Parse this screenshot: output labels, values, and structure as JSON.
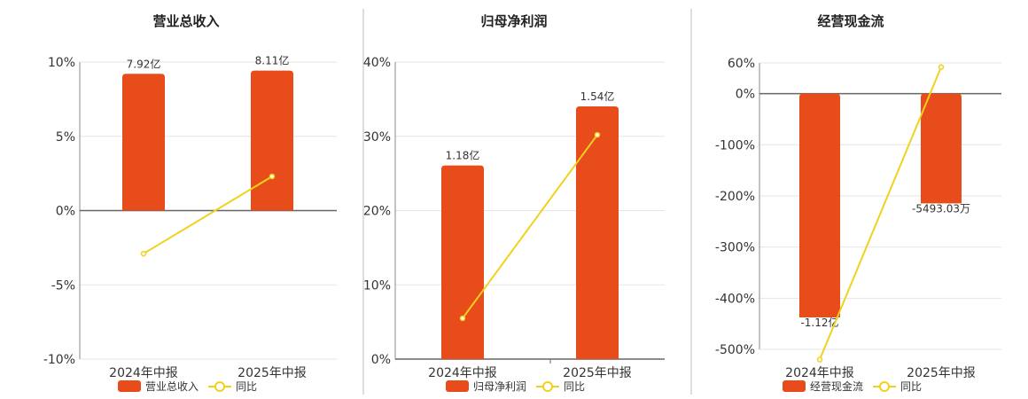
{
  "chart_data": [
    {
      "type": "bar",
      "title": "营业总收入",
      "categories": [
        "2024年中报",
        "2025年中报"
      ],
      "series": [
        {
          "name": "营业总收入",
          "type": "bar",
          "values": [
            7.92,
            8.11
          ],
          "labels": [
            "7.92亿",
            "8.11亿"
          ],
          "color": "#e84c1a"
        },
        {
          "name": "同比",
          "type": "line",
          "values": [
            -2.9,
            2.3
          ],
          "color": "#f0d21e"
        }
      ],
      "ylim": [
        -10,
        10
      ],
      "yticks": [
        "10%",
        "5%",
        "0%",
        "-5%",
        "-10%"
      ],
      "bar_scale": [
        0,
        8.5
      ],
      "grid": true,
      "legend": "bottom"
    },
    {
      "type": "bar",
      "title": "归母净利润",
      "categories": [
        "2024年中报",
        "2025年中报"
      ],
      "series": [
        {
          "name": "归母净利润",
          "type": "bar",
          "values": [
            1.18,
            1.54
          ],
          "labels": [
            "1.18亿",
            "1.54亿"
          ],
          "color": "#e84c1a"
        },
        {
          "name": "同比",
          "type": "line",
          "values": [
            5.5,
            30.2
          ],
          "color": "#f0d21e"
        }
      ],
      "ylim": [
        0,
        40
      ],
      "yticks": [
        "40%",
        "30%",
        "20%",
        "10%",
        "0%"
      ],
      "bar_scale": [
        0,
        1.81
      ],
      "grid": true,
      "legend": "bottom"
    },
    {
      "type": "bar",
      "title": "经营现金流",
      "categories": [
        "2024年中报",
        "2025年中报"
      ],
      "series": [
        {
          "name": "经营现金流",
          "type": "bar",
          "values": [
            -1.12,
            -0.549303
          ],
          "labels": [
            "-1.12亿",
            "-5493.03万"
          ],
          "color": "#e84c1a"
        },
        {
          "name": "同比",
          "type": "line",
          "values": [
            -520,
            52
          ],
          "color": "#f0d21e"
        }
      ],
      "ylim": [
        -500,
        60
      ],
      "yticks": [
        "60%",
        "0%",
        "-100%",
        "-200%",
        "-300%",
        "-400%",
        "-500%"
      ],
      "bar_scale": [
        -1.12,
        0
      ],
      "grid": true,
      "legend": "bottom"
    }
  ]
}
